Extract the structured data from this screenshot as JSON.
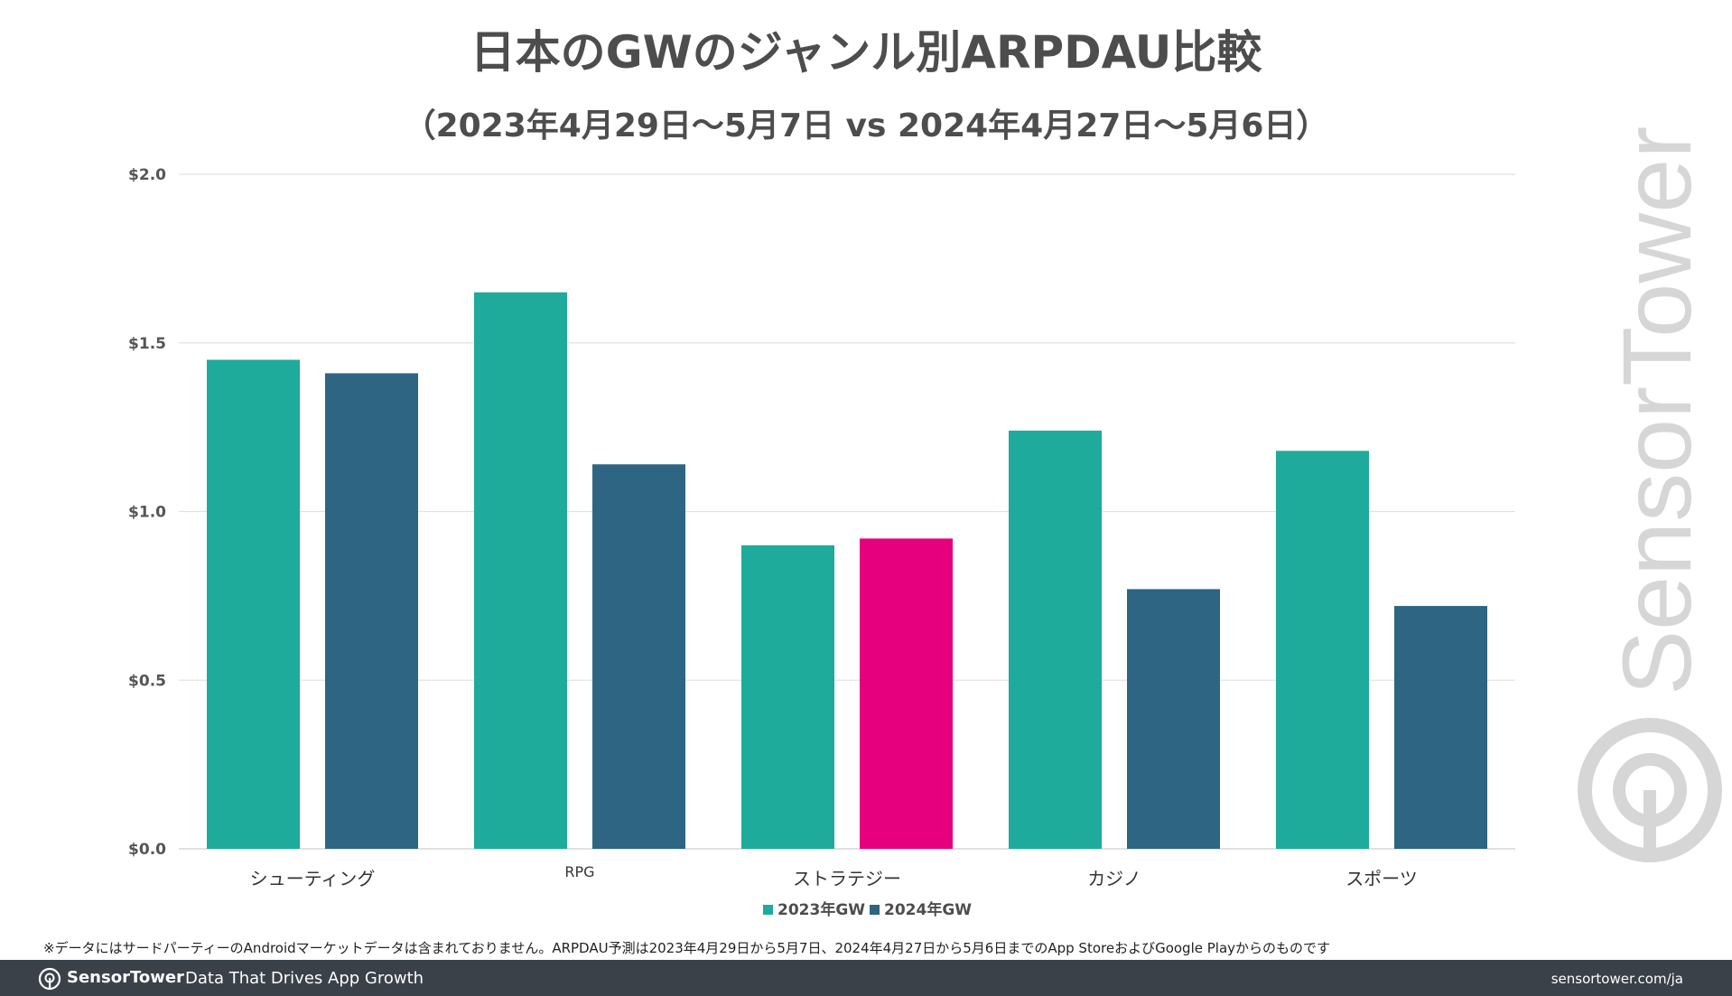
{
  "chart_data": {
    "type": "bar",
    "title": "日本のGWのジャンル別ARPDAU比較",
    "subtitle": "（2023年4月29日〜5月7日 vs 2024年4月27日〜5月6日）",
    "categories": [
      "シューティング",
      "RPG",
      "ストラテジー",
      "カジノ",
      "スポーツ"
    ],
    "series": [
      {
        "name": "2023年GW",
        "color": "#1eab9b",
        "values": [
          1.45,
          1.65,
          0.9,
          1.24,
          1.18
        ]
      },
      {
        "name": "2024年GW",
        "color": "#2d6582",
        "values": [
          1.41,
          1.14,
          0.92,
          0.77,
          0.72
        ]
      }
    ],
    "highlight": {
      "series": 1,
      "category": 2,
      "color": "#e6007e"
    },
    "ylim": [
      0,
      2.0
    ],
    "yticks": [
      {
        "value": 0.0,
        "label": "$0.0"
      },
      {
        "value": 0.5,
        "label": "$0.5"
      },
      {
        "value": 1.0,
        "label": "$1.0"
      },
      {
        "value": 1.5,
        "label": "$1.5"
      },
      {
        "value": 2.0,
        "label": "$2.0"
      }
    ],
    "grid": true,
    "legend": "bottom-center"
  },
  "footnote": "※データにはサードパーティーのAndroidマーケットデータは含まれておりません。ARPDAU予測は2023年4月29日から5月7日、2024年4月27日から5月6日までのApp StoreおよびGoogle Playからのものです",
  "watermark_text": "SensorTower",
  "footer": {
    "brand": "SensorTower",
    "tagline": "Data That Drives App Growth",
    "url": "sensortower.com/ja",
    "logo_icon": "sensor-tower-logo-icon",
    "background": "#3a4149"
  }
}
